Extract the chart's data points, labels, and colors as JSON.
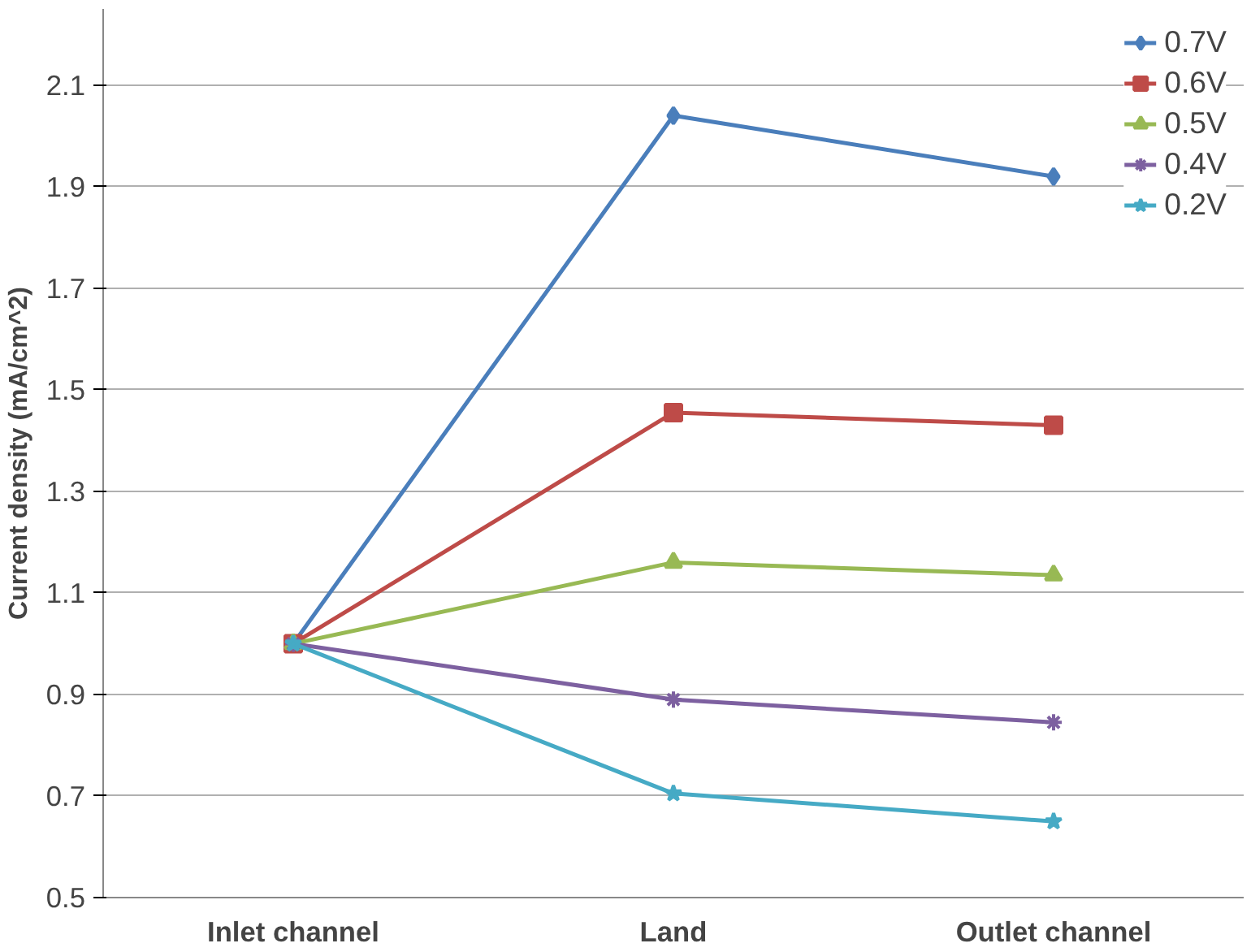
{
  "chart_data": {
    "type": "line",
    "ylabel": "Current density (mA/cm^2)",
    "categories": [
      "Inlet channel",
      "Land",
      "Outlet channel"
    ],
    "ylim": [
      0.5,
      2.25
    ],
    "yticks": [
      0.5,
      0.7,
      0.9,
      1.1,
      1.3,
      1.5,
      1.7,
      1.9,
      2.1
    ],
    "grid": "y",
    "legend": "top right",
    "series": [
      {
        "name": "0.7V",
        "color": "#4a7ebb",
        "marker": "diamond",
        "values": [
          1.0,
          2.04,
          1.92
        ]
      },
      {
        "name": "0.6V",
        "color": "#be4b48",
        "marker": "square",
        "values": [
          1.0,
          1.455,
          1.43
        ]
      },
      {
        "name": "0.5V",
        "color": "#98b954",
        "marker": "triangle",
        "values": [
          1.0,
          1.16,
          1.135
        ]
      },
      {
        "name": "0.4V",
        "color": "#7d60a0",
        "marker": "cross",
        "values": [
          1.0,
          0.89,
          0.845
        ]
      },
      {
        "name": "0.2V",
        "color": "#46aac5",
        "marker": "star",
        "values": [
          1.0,
          0.705,
          0.65
        ]
      }
    ]
  }
}
